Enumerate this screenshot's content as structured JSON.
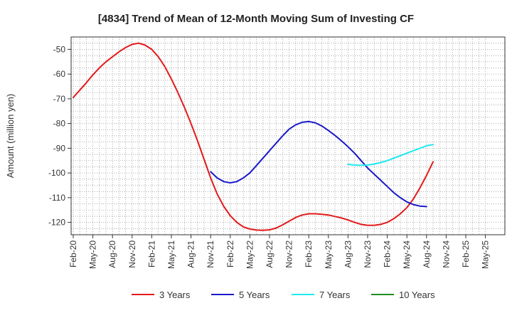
{
  "chart_data": {
    "type": "line",
    "title": "[4834]  Trend of Mean of 12-Month Moving Sum of Investing CF",
    "ylabel": "Amount (million yen)",
    "xlabel": "",
    "ylim": [
      -125,
      -45
    ],
    "yticks": [
      -50,
      -60,
      -70,
      -80,
      -90,
      -100,
      -110,
      -120
    ],
    "categories": [
      "Feb-20",
      "May-20",
      "Aug-20",
      "Nov-20",
      "Feb-21",
      "May-21",
      "Aug-21",
      "Nov-21",
      "Feb-22",
      "May-22",
      "Aug-22",
      "Nov-22",
      "Feb-23",
      "May-23",
      "Aug-23",
      "Nov-23",
      "Feb-24",
      "May-24",
      "Aug-24",
      "Nov-24",
      "Feb-25",
      "May-25"
    ],
    "grid": true,
    "legend_position": "bottom",
    "series": [
      {
        "name": "3 Years",
        "color": "#e31a1c",
        "points": [
          [
            "Feb-20",
            -69.5
          ],
          [
            "Mar-20",
            -66.5
          ],
          [
            "Apr-20",
            -63.5
          ],
          [
            "May-20",
            -60.3
          ],
          [
            "Jun-20",
            -57.5
          ],
          [
            "Jul-20",
            -55
          ],
          [
            "Aug-20",
            -53
          ],
          [
            "Sep-20",
            -51
          ],
          [
            "Oct-20",
            -49.3
          ],
          [
            "Nov-20",
            -48
          ],
          [
            "Dec-20",
            -47.5
          ],
          [
            "Jan-21",
            -48.3
          ],
          [
            "Feb-21",
            -50
          ],
          [
            "Mar-21",
            -53
          ],
          [
            "Apr-21",
            -57
          ],
          [
            "May-21",
            -62
          ],
          [
            "Jun-21",
            -67.5
          ],
          [
            "Jul-21",
            -73.5
          ],
          [
            "Aug-21",
            -80
          ],
          [
            "Sep-21",
            -87
          ],
          [
            "Oct-21",
            -94.5
          ],
          [
            "Nov-21",
            -102
          ],
          [
            "Dec-21",
            -108.5
          ],
          [
            "Jan-22",
            -113.5
          ],
          [
            "Feb-22",
            -117.3
          ],
          [
            "Mar-22",
            -120
          ],
          [
            "Apr-22",
            -121.8
          ],
          [
            "May-22",
            -122.7
          ],
          [
            "Jun-22",
            -123.1
          ],
          [
            "Jul-22",
            -123.2
          ],
          [
            "Aug-22",
            -123
          ],
          [
            "Sep-22",
            -122.3
          ],
          [
            "Oct-22",
            -121
          ],
          [
            "Nov-22",
            -119.5
          ],
          [
            "Dec-22",
            -118
          ],
          [
            "Jan-23",
            -117
          ],
          [
            "Feb-23",
            -116.5
          ],
          [
            "Mar-23",
            -116.5
          ],
          [
            "Apr-23",
            -116.7
          ],
          [
            "May-23",
            -117
          ],
          [
            "Jun-23",
            -117.6
          ],
          [
            "Jul-23",
            -118.2
          ],
          [
            "Aug-23",
            -119
          ],
          [
            "Sep-23",
            -120
          ],
          [
            "Oct-23",
            -120.8
          ],
          [
            "Nov-23",
            -121.2
          ],
          [
            "Dec-23",
            -121.2
          ],
          [
            "Jan-24",
            -120.8
          ],
          [
            "Feb-24",
            -120
          ],
          [
            "Mar-24",
            -118.5
          ],
          [
            "Apr-24",
            -116.5
          ],
          [
            "May-24",
            -114
          ],
          [
            "Jun-24",
            -110.5
          ],
          [
            "Jul-24",
            -106
          ],
          [
            "Aug-24",
            -101
          ],
          [
            "Sep-24",
            -95.5
          ]
        ]
      },
      {
        "name": "5 Years",
        "color": "#1a1ac8",
        "points": [
          [
            "Nov-21",
            -99.5
          ],
          [
            "Dec-21",
            -102
          ],
          [
            "Jan-22",
            -103.5
          ],
          [
            "Feb-22",
            -104
          ],
          [
            "Mar-22",
            -103.5
          ],
          [
            "Apr-22",
            -102
          ],
          [
            "May-22",
            -100
          ],
          [
            "Jun-22",
            -97
          ],
          [
            "Jul-22",
            -94
          ],
          [
            "Aug-22",
            -91
          ],
          [
            "Sep-22",
            -88
          ],
          [
            "Oct-22",
            -85
          ],
          [
            "Nov-22",
            -82.3
          ],
          [
            "Dec-22",
            -80.5
          ],
          [
            "Jan-23",
            -79.5
          ],
          [
            "Feb-23",
            -79.2
          ],
          [
            "Mar-23",
            -79.7
          ],
          [
            "Apr-23",
            -81
          ],
          [
            "May-23",
            -82.8
          ],
          [
            "Jun-23",
            -84.8
          ],
          [
            "Jul-23",
            -87
          ],
          [
            "Aug-23",
            -89.4
          ],
          [
            "Sep-23",
            -92
          ],
          [
            "Oct-23",
            -95
          ],
          [
            "Nov-23",
            -98
          ],
          [
            "Dec-23",
            -100.5
          ],
          [
            "Jan-24",
            -103
          ],
          [
            "Feb-24",
            -105.5
          ],
          [
            "Mar-24",
            -108
          ],
          [
            "Apr-24",
            -110
          ],
          [
            "May-24",
            -111.7
          ],
          [
            "Jun-24",
            -112.8
          ],
          [
            "Jul-24",
            -113.4
          ],
          [
            "Aug-24",
            -113.6
          ]
        ]
      },
      {
        "name": "7 Years",
        "color": "#1ee8f0",
        "points": [
          [
            "Aug-23",
            -96.5
          ],
          [
            "Sep-23",
            -96.8
          ],
          [
            "Oct-23",
            -96.9
          ],
          [
            "Nov-23",
            -96.8
          ],
          [
            "Dec-23",
            -96.4
          ],
          [
            "Jan-24",
            -95.8
          ],
          [
            "Feb-24",
            -95
          ],
          [
            "Mar-24",
            -94
          ],
          [
            "Apr-24",
            -93
          ],
          [
            "May-24",
            -92
          ],
          [
            "Jun-24",
            -91
          ],
          [
            "Jul-24",
            -90
          ],
          [
            "Aug-24",
            -89
          ],
          [
            "Sep-24",
            -88.5
          ]
        ]
      },
      {
        "name": "10 Years",
        "color": "#1e8c1e",
        "points": []
      }
    ]
  }
}
